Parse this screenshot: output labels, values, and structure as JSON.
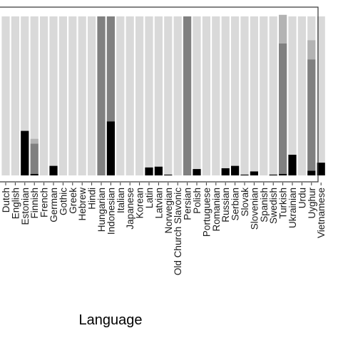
{
  "chart_data": {
    "type": "bar",
    "stacked": true,
    "title": "",
    "xlabel": "Language",
    "ylabel": "",
    "ylim": [
      0,
      1
    ],
    "grid": false,
    "legend": "none",
    "categories": [
      "Dutch",
      "English",
      "Estonian",
      "Finnish",
      "French",
      "German",
      "Gothic",
      "Greek",
      "Hebrew",
      "Hindi",
      "Hungarian",
      "Indonesian",
      "Italian",
      "Japanese",
      "Korean",
      "Latin",
      "Latvian",
      "Norwegian",
      "Old Church Slavonic",
      "Persian",
      "Polish",
      "Portuguese",
      "Romanian",
      "Russian",
      "Serbian",
      "Slovak",
      "Slovenian",
      "Spanish",
      "Swedish",
      "Turkish",
      "Ukrainian",
      "Urdu",
      "Uyghur",
      "Vietnamese"
    ],
    "series": [
      {
        "values": [
          0,
          0,
          0.28,
          0.01,
          0,
          0.06,
          0,
          0,
          0,
          0,
          0,
          0.34,
          0,
          0,
          0,
          0.05,
          0.055,
          0.005,
          0,
          0,
          0.04,
          0,
          0,
          0.045,
          0.06,
          0.005,
          0.025,
          0,
          0.005,
          0.01,
          0.13,
          0,
          0.03,
          0.08
        ],
        "color": "#000000"
      },
      {
        "values": [
          0,
          0,
          0,
          0.19,
          0,
          0,
          0,
          0,
          0,
          0,
          1,
          0.66,
          0,
          0,
          0,
          0,
          0,
          0,
          0,
          1,
          0,
          0,
          0,
          0,
          0,
          0,
          0,
          0,
          0,
          0.82,
          0,
          0,
          0.7,
          0
        ],
        "color": "#808080"
      },
      {
        "values": [
          0,
          0,
          0,
          0.03,
          0,
          0,
          0,
          0,
          0,
          0,
          0,
          0,
          0,
          0,
          0,
          0,
          0,
          0,
          0,
          0,
          0,
          0,
          0,
          0,
          0,
          0,
          0,
          0,
          0,
          0.18,
          0,
          0,
          0.12,
          0
        ],
        "color": "#b3b3b3"
      }
    ],
    "remainder_color": "#d9d9d9",
    "border_color": "#333333"
  }
}
